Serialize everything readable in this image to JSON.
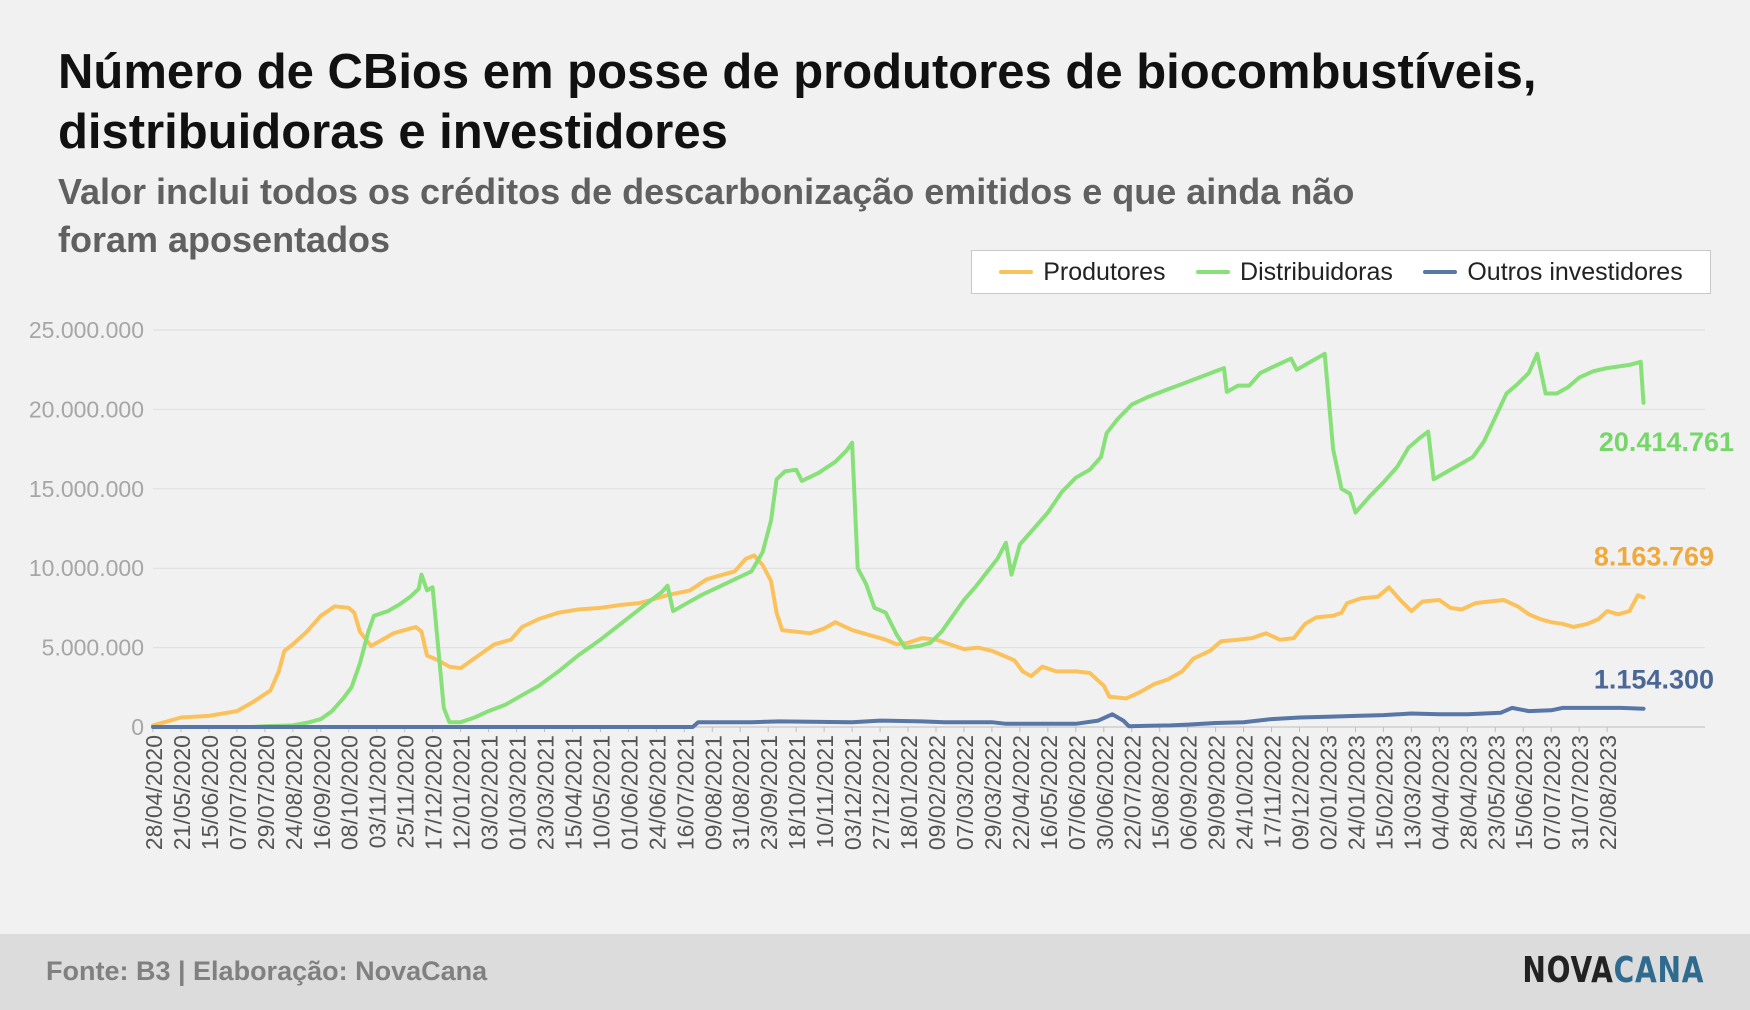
{
  "chart_data": {
    "type": "line",
    "title": "Número de CBios em posse de produtores de biocombustíveis, distribuidoras e investidores",
    "subtitle": "Valor inclui todos os créditos de descarbonização emitidos e que ainda não foram aposentados",
    "ylim": [
      0,
      25000000
    ],
    "y_ticks": [
      "0",
      "5.000.000",
      "10.000.000",
      "15.000.000",
      "20.000.000",
      "25.000.000"
    ],
    "x_ticks": [
      "28/04/2020",
      "21/05/2020",
      "15/06/2020",
      "07/07/2020",
      "29/07/2020",
      "24/08/2020",
      "16/09/2020",
      "08/10/2020",
      "03/11/2020",
      "25/11/2020",
      "17/12/2020",
      "12/01/2021",
      "03/02/2021",
      "01/03/2021",
      "23/03/2021",
      "15/04/2021",
      "10/05/2021",
      "01/06/2021",
      "24/06/2021",
      "16/07/2021",
      "09/08/2021",
      "31/08/2021",
      "23/09/2021",
      "18/10/2021",
      "10/11/2021",
      "03/12/2021",
      "27/12/2021",
      "18/01/2022",
      "09/02/2022",
      "07/03/2022",
      "29/03/2022",
      "22/04/2022",
      "16/05/2022",
      "07/06/2022",
      "30/06/2022",
      "22/07/2022",
      "15/08/2022",
      "06/09/2022",
      "29/09/2022",
      "24/10/2022",
      "17/11/2022",
      "09/12/2022",
      "02/01/2023",
      "24/01/2023",
      "15/02/2023",
      "13/03/2023",
      "04/04/2023",
      "28/04/2023",
      "23/05/2023",
      "15/06/2023",
      "07/07/2023",
      "31/07/2023",
      "22/08/2023"
    ],
    "grid": true,
    "legend_position": "top-right",
    "series": [
      {
        "name": "Produtores",
        "color": "#fbc25c",
        "end_label": "8.163.769",
        "label_color": "#f0a93c",
        "points": [
          [
            0,
            100000
          ],
          [
            1,
            600000
          ],
          [
            2,
            700000
          ],
          [
            3,
            1000000
          ],
          [
            3.6,
            1600000
          ],
          [
            4.2,
            2300000
          ],
          [
            4.5,
            3500000
          ],
          [
            4.7,
            4800000
          ],
          [
            5,
            5200000
          ],
          [
            5.5,
            6000000
          ],
          [
            6,
            7000000
          ],
          [
            6.5,
            7600000
          ],
          [
            7,
            7500000
          ],
          [
            7.2,
            7200000
          ],
          [
            7.4,
            6000000
          ],
          [
            7.8,
            5100000
          ],
          [
            8.2,
            5500000
          ],
          [
            8.6,
            5900000
          ],
          [
            9,
            6100000
          ],
          [
            9.4,
            6300000
          ],
          [
            9.6,
            6000000
          ],
          [
            9.8,
            4500000
          ],
          [
            10.2,
            4200000
          ],
          [
            10.6,
            3800000
          ],
          [
            11,
            3700000
          ],
          [
            11.4,
            4200000
          ],
          [
            11.8,
            4700000
          ],
          [
            12.2,
            5200000
          ],
          [
            12.8,
            5500000
          ],
          [
            13.2,
            6300000
          ],
          [
            13.8,
            6800000
          ],
          [
            14.5,
            7200000
          ],
          [
            15.2,
            7400000
          ],
          [
            16,
            7500000
          ],
          [
            16.8,
            7700000
          ],
          [
            17.4,
            7800000
          ],
          [
            17.8,
            8000000
          ],
          [
            18.4,
            8300000
          ],
          [
            19.2,
            8600000
          ],
          [
            19.8,
            9300000
          ],
          [
            20.2,
            9500000
          ],
          [
            20.8,
            9800000
          ],
          [
            21.2,
            10600000
          ],
          [
            21.5,
            10800000
          ],
          [
            21.8,
            10200000
          ],
          [
            22.1,
            9200000
          ],
          [
            22.3,
            7200000
          ],
          [
            22.5,
            6100000
          ],
          [
            23,
            6000000
          ],
          [
            23.5,
            5900000
          ],
          [
            24,
            6200000
          ],
          [
            24.4,
            6600000
          ],
          [
            25,
            6100000
          ],
          [
            25.6,
            5800000
          ],
          [
            26.2,
            5500000
          ],
          [
            26.6,
            5200000
          ],
          [
            27,
            5300000
          ],
          [
            27.5,
            5600000
          ],
          [
            28,
            5500000
          ],
          [
            28.5,
            5200000
          ],
          [
            29,
            4900000
          ],
          [
            29.5,
            5000000
          ],
          [
            30,
            4800000
          ],
          [
            30.4,
            4500000
          ],
          [
            30.8,
            4200000
          ],
          [
            31.1,
            3500000
          ],
          [
            31.4,
            3200000
          ],
          [
            31.8,
            3800000
          ],
          [
            32.3,
            3500000
          ],
          [
            33,
            3500000
          ],
          [
            33.5,
            3400000
          ],
          [
            34,
            2600000
          ],
          [
            34.2,
            1900000
          ],
          [
            34.8,
            1800000
          ],
          [
            35.3,
            2200000
          ],
          [
            35.8,
            2700000
          ],
          [
            36.3,
            3000000
          ],
          [
            36.8,
            3500000
          ],
          [
            37.2,
            4300000
          ],
          [
            37.8,
            4800000
          ],
          [
            38.2,
            5400000
          ],
          [
            38.8,
            5500000
          ],
          [
            39.3,
            5600000
          ],
          [
            39.8,
            5900000
          ],
          [
            40.3,
            5500000
          ],
          [
            40.8,
            5600000
          ],
          [
            41.2,
            6500000
          ],
          [
            41.6,
            6900000
          ],
          [
            42.2,
            7000000
          ],
          [
            42.5,
            7200000
          ],
          [
            42.7,
            7800000
          ],
          [
            43.2,
            8100000
          ],
          [
            43.8,
            8200000
          ],
          [
            44.2,
            8800000
          ],
          [
            44.6,
            8000000
          ],
          [
            45,
            7300000
          ],
          [
            45.4,
            7900000
          ],
          [
            46,
            8000000
          ],
          [
            46.4,
            7500000
          ],
          [
            46.8,
            7400000
          ],
          [
            47.3,
            7800000
          ],
          [
            47.8,
            7900000
          ],
          [
            48.3,
            8000000
          ],
          [
            48.8,
            7600000
          ],
          [
            49.2,
            7100000
          ],
          [
            49.6,
            6800000
          ],
          [
            50,
            6600000
          ],
          [
            50.4,
            6500000
          ],
          [
            50.8,
            6300000
          ],
          [
            51.3,
            6500000
          ],
          [
            51.7,
            6800000
          ],
          [
            52,
            7300000
          ],
          [
            52.4,
            7100000
          ],
          [
            52.8,
            7300000
          ],
          [
            53.1,
            8300000
          ],
          [
            53.3,
            8163769
          ]
        ]
      },
      {
        "name": "Distribuidoras",
        "color": "#88e078",
        "end_label": "20.414.761",
        "label_color": "#77d66a",
        "points": [
          [
            0,
            0
          ],
          [
            3.5,
            0
          ],
          [
            4,
            50000
          ],
          [
            5,
            100000
          ],
          [
            5.6,
            300000
          ],
          [
            6,
            500000
          ],
          [
            6.4,
            1000000
          ],
          [
            6.8,
            1800000
          ],
          [
            7.1,
            2500000
          ],
          [
            7.4,
            4000000
          ],
          [
            7.7,
            6000000
          ],
          [
            7.9,
            7000000
          ],
          [
            8.4,
            7300000
          ],
          [
            8.8,
            7700000
          ],
          [
            9.2,
            8200000
          ],
          [
            9.5,
            8700000
          ],
          [
            9.6,
            9600000
          ],
          [
            9.8,
            8600000
          ],
          [
            10,
            8800000
          ],
          [
            10.2,
            5000000
          ],
          [
            10.4,
            1200000
          ],
          [
            10.6,
            300000
          ],
          [
            11,
            300000
          ],
          [
            11.5,
            600000
          ],
          [
            12,
            1000000
          ],
          [
            12.6,
            1400000
          ],
          [
            13.2,
            2000000
          ],
          [
            13.8,
            2600000
          ],
          [
            14.5,
            3500000
          ],
          [
            15.2,
            4500000
          ],
          [
            16,
            5500000
          ],
          [
            16.8,
            6600000
          ],
          [
            17.6,
            7700000
          ],
          [
            18.2,
            8500000
          ],
          [
            18.4,
            8900000
          ],
          [
            18.6,
            7300000
          ],
          [
            19,
            7700000
          ],
          [
            19.6,
            8300000
          ],
          [
            20.2,
            8800000
          ],
          [
            20.8,
            9300000
          ],
          [
            21.4,
            9800000
          ],
          [
            21.8,
            11000000
          ],
          [
            22.1,
            13000000
          ],
          [
            22.3,
            15600000
          ],
          [
            22.6,
            16100000
          ],
          [
            23,
            16200000
          ],
          [
            23.2,
            15500000
          ],
          [
            23.8,
            16000000
          ],
          [
            24.4,
            16700000
          ],
          [
            24.8,
            17400000
          ],
          [
            25,
            17900000
          ],
          [
            25.2,
            10000000
          ],
          [
            25.5,
            9000000
          ],
          [
            25.8,
            7500000
          ],
          [
            26.2,
            7200000
          ],
          [
            26.6,
            5800000
          ],
          [
            26.9,
            5000000
          ],
          [
            27.4,
            5100000
          ],
          [
            27.8,
            5300000
          ],
          [
            28.2,
            6000000
          ],
          [
            28.6,
            7000000
          ],
          [
            29,
            8000000
          ],
          [
            29.4,
            8800000
          ],
          [
            29.8,
            9700000
          ],
          [
            30.2,
            10600000
          ],
          [
            30.5,
            11600000
          ],
          [
            30.7,
            9600000
          ],
          [
            31,
            11500000
          ],
          [
            31.5,
            12500000
          ],
          [
            32,
            13500000
          ],
          [
            32.5,
            14800000
          ],
          [
            33,
            15700000
          ],
          [
            33.5,
            16200000
          ],
          [
            33.9,
            17000000
          ],
          [
            34.1,
            18500000
          ],
          [
            34.5,
            19400000
          ],
          [
            35,
            20300000
          ],
          [
            35.6,
            20800000
          ],
          [
            36.2,
            21200000
          ],
          [
            36.8,
            21600000
          ],
          [
            37.4,
            22000000
          ],
          [
            38,
            22400000
          ],
          [
            38.3,
            22600000
          ],
          [
            38.4,
            21100000
          ],
          [
            38.8,
            21500000
          ],
          [
            39.2,
            21500000
          ],
          [
            39.6,
            22300000
          ],
          [
            40.2,
            22800000
          ],
          [
            40.7,
            23200000
          ],
          [
            40.9,
            22500000
          ],
          [
            41.4,
            23000000
          ],
          [
            41.9,
            23500000
          ],
          [
            42.2,
            17500000
          ],
          [
            42.5,
            15000000
          ],
          [
            42.8,
            14700000
          ],
          [
            43,
            13500000
          ],
          [
            43.5,
            14500000
          ],
          [
            44,
            15400000
          ],
          [
            44.5,
            16400000
          ],
          [
            44.9,
            17600000
          ],
          [
            45.3,
            18200000
          ],
          [
            45.6,
            18600000
          ],
          [
            45.8,
            15600000
          ],
          [
            46.2,
            16000000
          ],
          [
            46.7,
            16500000
          ],
          [
            47.2,
            17000000
          ],
          [
            47.6,
            18000000
          ],
          [
            48,
            19500000
          ],
          [
            48.4,
            21000000
          ],
          [
            48.8,
            21600000
          ],
          [
            49.2,
            22300000
          ],
          [
            49.5,
            23500000
          ],
          [
            49.8,
            21000000
          ],
          [
            50.2,
            21000000
          ],
          [
            50.6,
            21400000
          ],
          [
            51,
            22000000
          ],
          [
            51.5,
            22400000
          ],
          [
            52,
            22600000
          ],
          [
            52.4,
            22700000
          ],
          [
            52.8,
            22800000
          ],
          [
            53.2,
            23000000
          ],
          [
            53.3,
            20414761
          ]
        ]
      },
      {
        "name": "Outros investidores",
        "color": "#5876a6",
        "end_label": "1.154.300",
        "label_color": "#4b6796",
        "points": [
          [
            0,
            0
          ],
          [
            19.3,
            0
          ],
          [
            19.5,
            300000
          ],
          [
            21.4,
            300000
          ],
          [
            22.4,
            350000
          ],
          [
            25,
            300000
          ],
          [
            26,
            400000
          ],
          [
            27.5,
            350000
          ],
          [
            28.3,
            300000
          ],
          [
            30,
            300000
          ],
          [
            30.5,
            200000
          ],
          [
            32,
            200000
          ],
          [
            33,
            200000
          ],
          [
            33.8,
            400000
          ],
          [
            34.3,
            800000
          ],
          [
            34.7,
            400000
          ],
          [
            34.9,
            50000
          ],
          [
            36.4,
            100000
          ],
          [
            37,
            150000
          ],
          [
            38,
            250000
          ],
          [
            39,
            300000
          ],
          [
            40,
            500000
          ],
          [
            41,
            600000
          ],
          [
            42,
            650000
          ],
          [
            43,
            700000
          ],
          [
            44,
            750000
          ],
          [
            45,
            850000
          ],
          [
            46,
            800000
          ],
          [
            47,
            800000
          ],
          [
            48.2,
            900000
          ],
          [
            48.6,
            1200000
          ],
          [
            49.2,
            1000000
          ],
          [
            50,
            1050000
          ],
          [
            50.4,
            1200000
          ],
          [
            51.5,
            1200000
          ],
          [
            52.5,
            1200000
          ],
          [
            53.3,
            1154300
          ]
        ]
      }
    ]
  },
  "footer": {
    "source": "Fonte: B3 | Elaboração: NovaCana",
    "logo_part1": "NOVA",
    "logo_part2": "CANA"
  }
}
